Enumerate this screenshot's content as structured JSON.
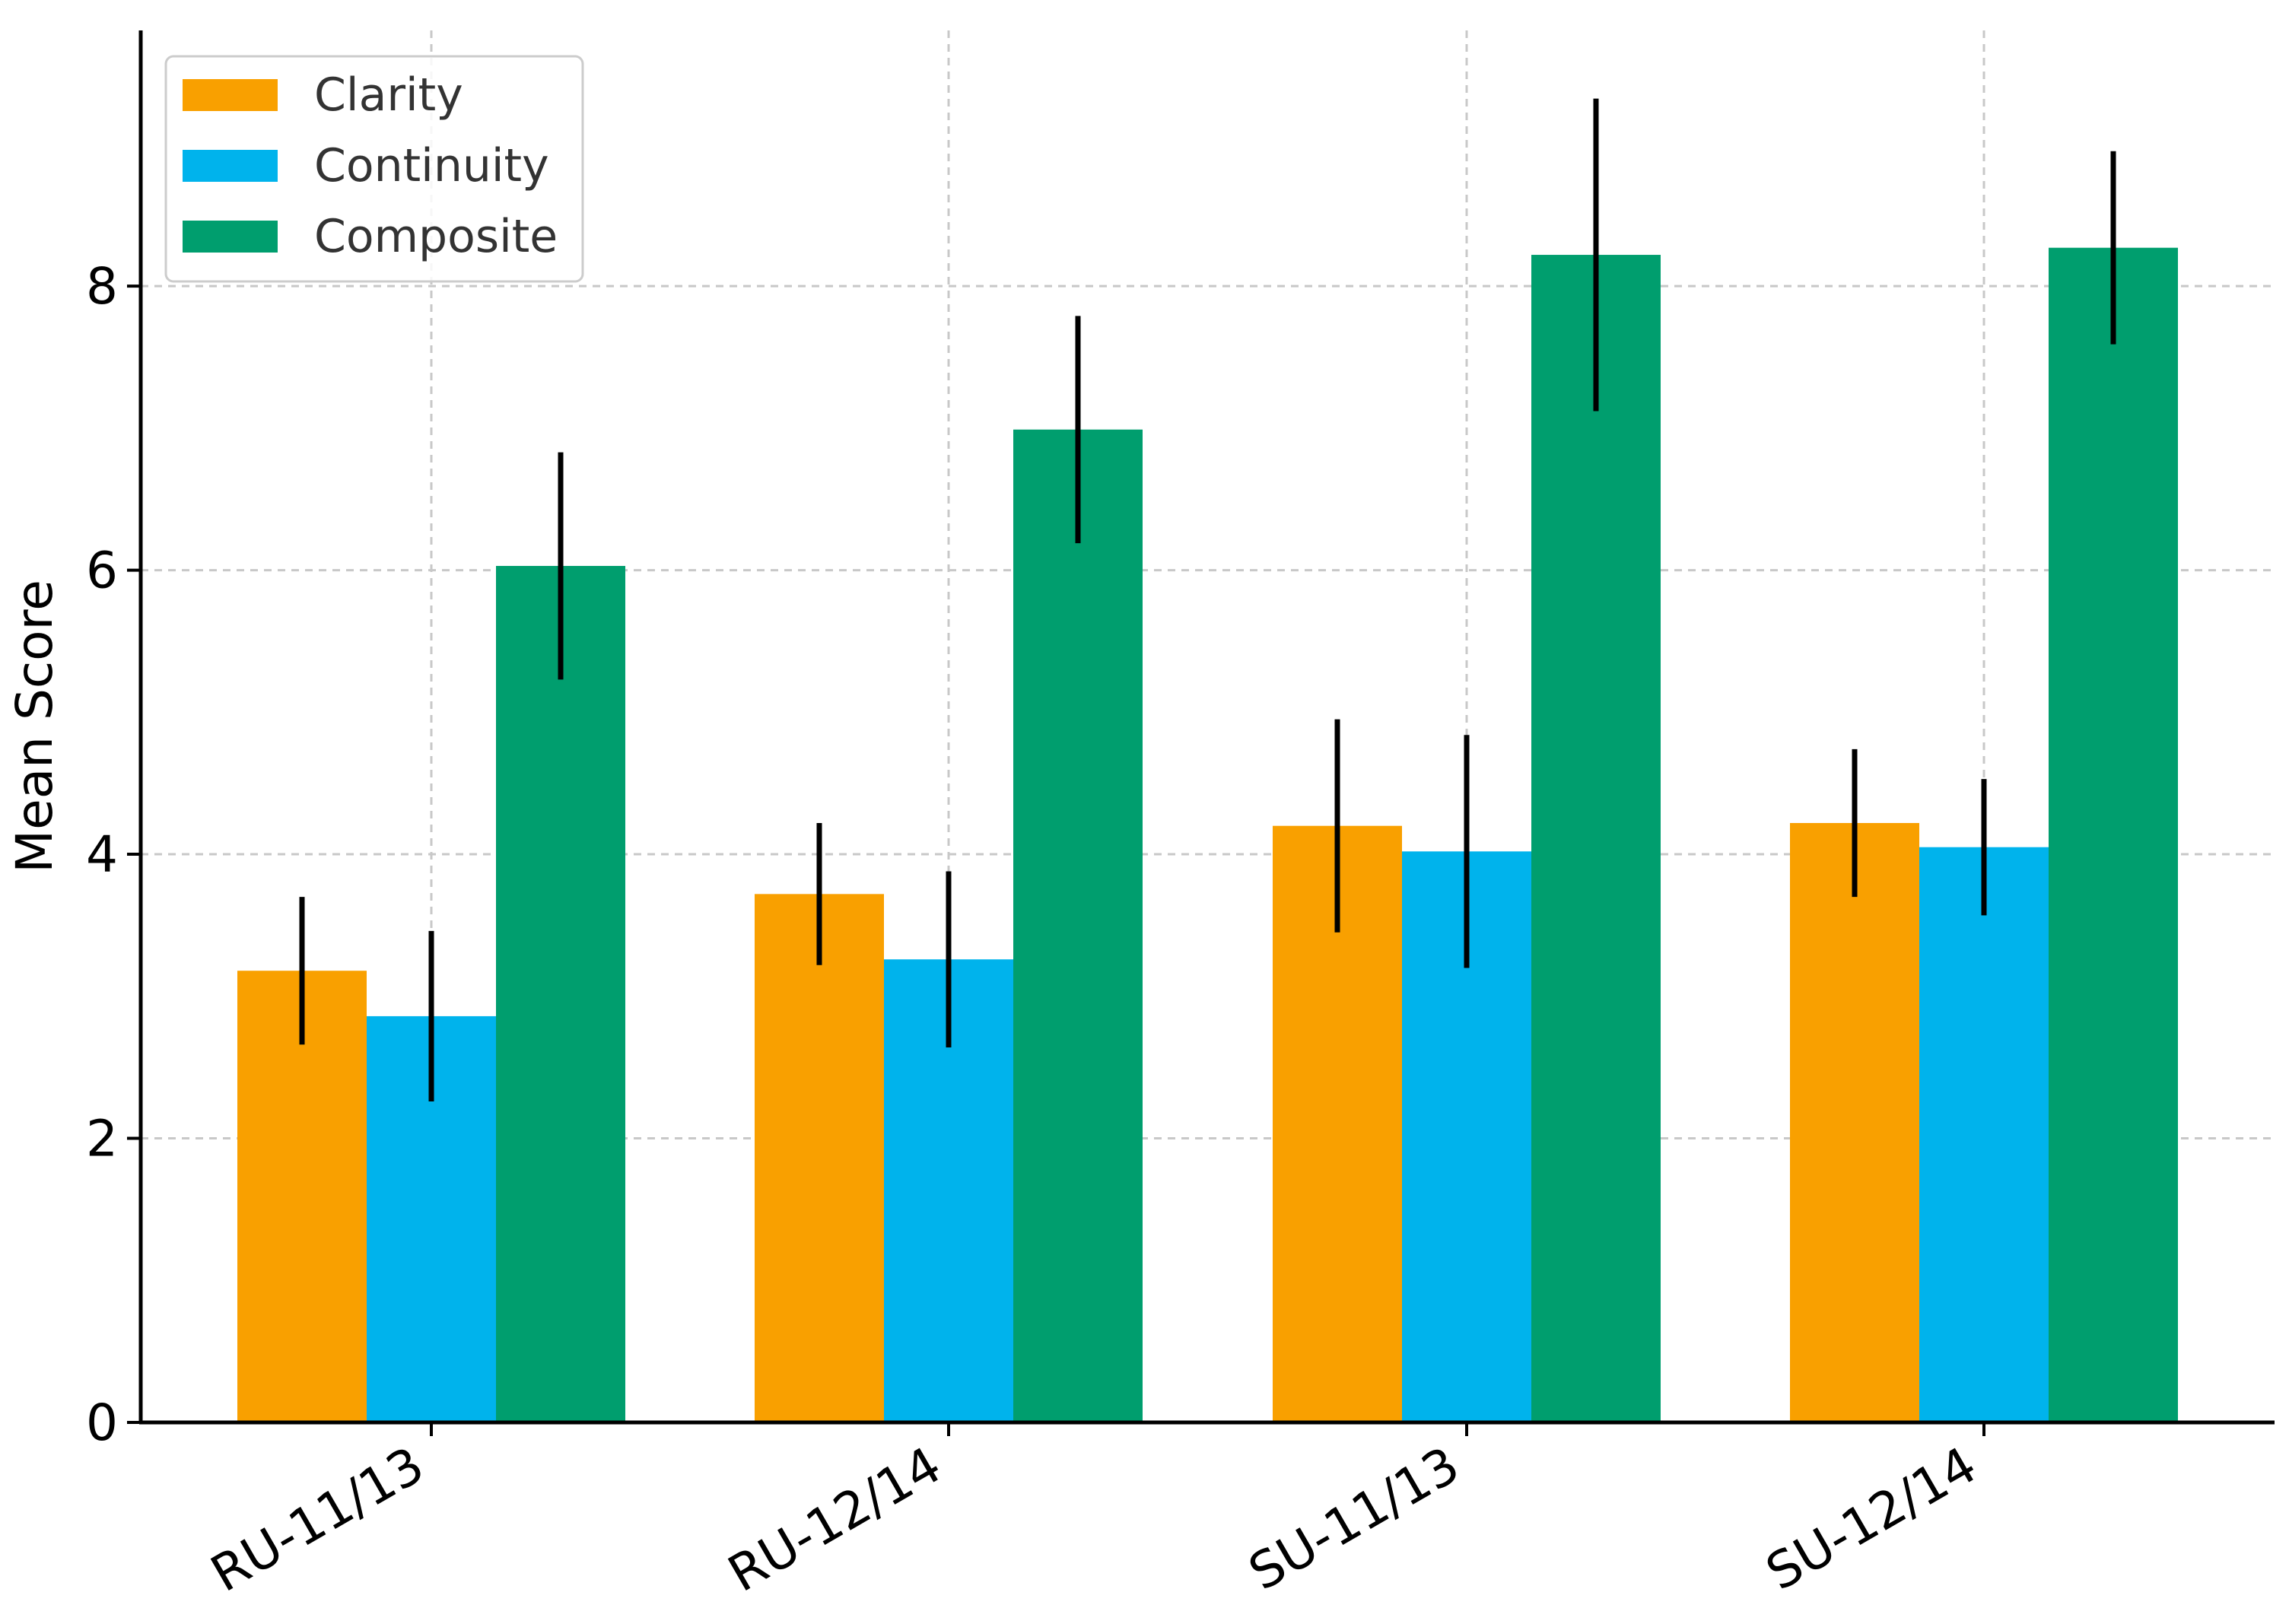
{
  "chart_data": {
    "type": "bar",
    "title": "",
    "xlabel": "",
    "ylabel": "Mean Score",
    "ylim": [
      0,
      9.8
    ],
    "yticks": [
      0,
      2,
      4,
      6,
      8
    ],
    "ytick_labels": [
      "0",
      "2",
      "4",
      "6",
      "8"
    ],
    "grid": true,
    "legend_position": "top-left",
    "categories": [
      "RU-11/13",
      "RU-12/14",
      "SU-11/13",
      "SU-12/14"
    ],
    "series": [
      {
        "name": "Clarity",
        "color": "#F9A000",
        "values": [
          3.18,
          3.72,
          4.2,
          4.22
        ],
        "errors": [
          0.52,
          0.5,
          0.75,
          0.52
        ]
      },
      {
        "name": "Continuity",
        "color": "#00B3EC",
        "values": [
          2.86,
          3.26,
          4.02,
          4.05
        ],
        "errors": [
          0.6,
          0.62,
          0.82,
          0.48
        ]
      },
      {
        "name": "Composite",
        "color": "#009E6E",
        "values": [
          6.03,
          6.99,
          8.22,
          8.27
        ],
        "errors": [
          0.8,
          0.8,
          1.1,
          0.68
        ]
      }
    ],
    "error_bar_color": "#000000"
  }
}
